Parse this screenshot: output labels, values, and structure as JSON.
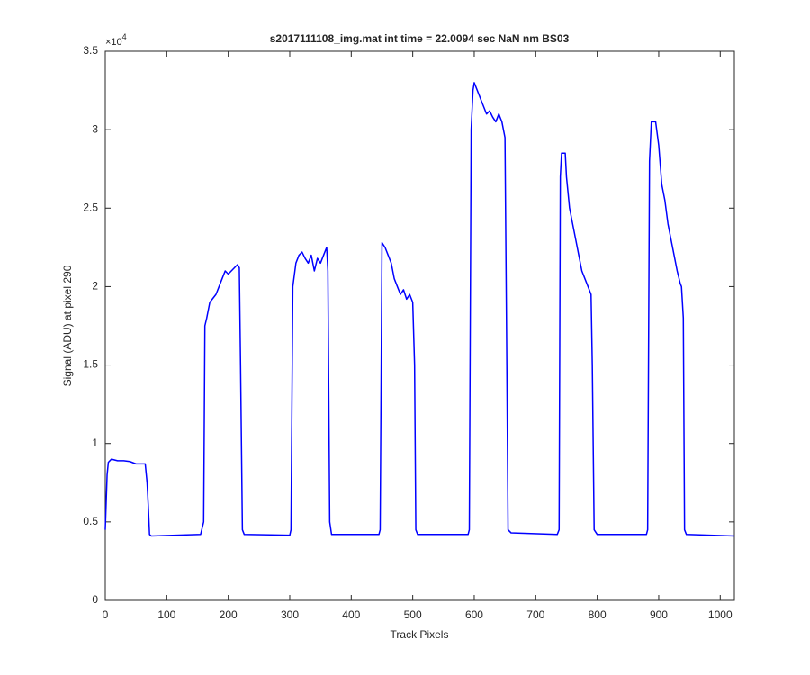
{
  "chart_data": {
    "type": "line",
    "title": "s2017111108_img.mat int time = 22.0094 sec  NaN nm BS03",
    "x_label": "Track Pixels",
    "y_label": "Signal (ADU) at pixel 290",
    "y_multiplier": "×10",
    "y_multiplier_power": "4",
    "color": "#0000ff",
    "xlim": [
      0,
      1023
    ],
    "ylim": [
      0,
      3.5
    ],
    "xticks": [
      0,
      100,
      200,
      300,
      400,
      500,
      600,
      700,
      800,
      900,
      1000
    ],
    "yticks": [
      0,
      0.5,
      1,
      1.5,
      2,
      2.5,
      3,
      3.5
    ],
    "x": [
      0,
      3,
      5,
      10,
      20,
      30,
      40,
      50,
      60,
      65,
      68,
      70,
      72,
      75,
      155,
      160,
      162,
      165,
      170,
      180,
      185,
      190,
      195,
      200,
      205,
      210,
      215,
      218,
      220,
      223,
      226,
      300,
      302,
      305,
      310,
      315,
      320,
      325,
      330,
      335,
      340,
      345,
      350,
      355,
      360,
      362,
      365,
      368,
      445,
      447,
      450,
      455,
      460,
      465,
      470,
      475,
      480,
      485,
      490,
      495,
      500,
      503,
      505,
      508,
      590,
      592,
      595,
      598,
      600,
      605,
      610,
      615,
      620,
      625,
      630,
      635,
      640,
      645,
      650,
      653,
      655,
      660,
      735,
      738,
      740,
      742,
      748,
      750,
      755,
      760,
      765,
      770,
      775,
      780,
      785,
      790,
      792,
      795,
      800,
      880,
      882,
      885,
      888,
      895,
      900,
      905,
      910,
      915,
      920,
      925,
      930,
      935,
      937,
      940,
      942,
      945,
      1023
    ],
    "values": [
      0.45,
      0.8,
      0.88,
      0.9,
      0.89,
      0.89,
      0.885,
      0.87,
      0.87,
      0.87,
      0.75,
      0.6,
      0.42,
      0.41,
      0.42,
      0.5,
      1.75,
      1.8,
      1.9,
      1.95,
      2.0,
      2.05,
      2.1,
      2.08,
      2.1,
      2.12,
      2.14,
      2.12,
      1.5,
      0.45,
      0.42,
      0.415,
      0.45,
      2.0,
      2.15,
      2.2,
      2.22,
      2.18,
      2.15,
      2.2,
      2.1,
      2.18,
      2.15,
      2.2,
      2.25,
      2.1,
      0.5,
      0.42,
      0.42,
      0.45,
      2.28,
      2.25,
      2.2,
      2.15,
      2.05,
      2.0,
      1.95,
      1.98,
      1.92,
      1.95,
      1.9,
      1.5,
      0.45,
      0.42,
      0.42,
      0.45,
      3.0,
      3.25,
      3.3,
      3.25,
      3.2,
      3.15,
      3.1,
      3.12,
      3.08,
      3.05,
      3.1,
      3.05,
      2.95,
      1.5,
      0.45,
      0.43,
      0.42,
      0.45,
      2.7,
      2.85,
      2.85,
      2.7,
      2.5,
      2.4,
      2.3,
      2.2,
      2.1,
      2.05,
      2.0,
      1.95,
      1.5,
      0.45,
      0.42,
      0.42,
      0.45,
      2.8,
      3.05,
      3.05,
      2.9,
      2.65,
      2.55,
      2.4,
      2.3,
      2.2,
      2.1,
      2.02,
      2.0,
      1.8,
      0.45,
      0.42,
      0.41
    ]
  }
}
